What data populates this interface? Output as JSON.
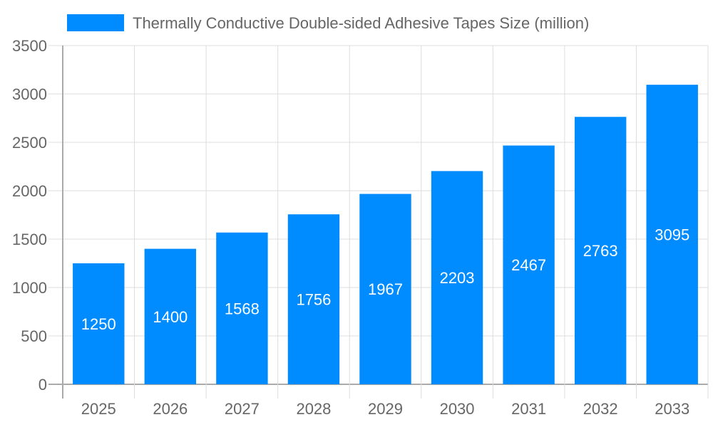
{
  "chart_data": {
    "type": "bar",
    "title": "",
    "xlabel": "",
    "ylabel": "",
    "categories": [
      "2025",
      "2026",
      "2027",
      "2028",
      "2029",
      "2030",
      "2031",
      "2032",
      "2033"
    ],
    "series": [
      {
        "name": "Thermally Conductive Double-sided Adhesive Tapes Size (million)",
        "values": [
          1250,
          1400,
          1568,
          1756,
          1967,
          2203,
          2467,
          2763,
          3095
        ],
        "color": "#008cff"
      }
    ],
    "ylim": [
      0,
      3500
    ],
    "yticks": [
      0,
      500,
      1000,
      1500,
      2000,
      2500,
      3000,
      3500
    ],
    "grid": true,
    "legend_position": "top",
    "data_labels": true
  }
}
